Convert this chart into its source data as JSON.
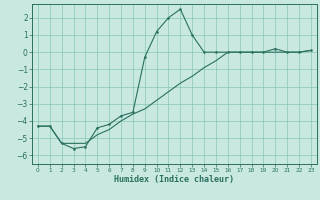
{
  "title": "",
  "xlabel": "Humidex (Indice chaleur)",
  "ylabel": "",
  "bg_color": "#c8e8e0",
  "grid_color": "#88c8b8",
  "line_color": "#2a7060",
  "xlim": [
    -0.5,
    23.5
  ],
  "ylim": [
    -6.5,
    2.8
  ],
  "xticks": [
    0,
    1,
    2,
    3,
    4,
    5,
    6,
    7,
    8,
    9,
    10,
    11,
    12,
    13,
    14,
    15,
    16,
    17,
    18,
    19,
    20,
    21,
    22,
    23
  ],
  "yticks": [
    -6,
    -5,
    -4,
    -3,
    -2,
    -1,
    0,
    1,
    2
  ],
  "line1_x": [
    0,
    1,
    2,
    3,
    4,
    5,
    6,
    7,
    8,
    9,
    10,
    11,
    12,
    13,
    14,
    15,
    16,
    17,
    18,
    19,
    20,
    21,
    22,
    23
  ],
  "line1_y": [
    -4.3,
    -4.3,
    -5.3,
    -5.6,
    -5.5,
    -4.4,
    -4.2,
    -3.7,
    -3.5,
    -0.3,
    1.2,
    2.0,
    2.5,
    1.0,
    0.0,
    0.0,
    0.0,
    0.0,
    0.0,
    0.0,
    0.2,
    0.0,
    0.0,
    0.1
  ],
  "line2_x": [
    0,
    1,
    2,
    3,
    4,
    5,
    6,
    7,
    8,
    9,
    10,
    11,
    12,
    13,
    14,
    15,
    16,
    17,
    18,
    19,
    20,
    21,
    22,
    23
  ],
  "line2_y": [
    -4.3,
    -4.3,
    -5.3,
    -5.3,
    -5.3,
    -4.8,
    -4.5,
    -4.0,
    -3.6,
    -3.3,
    -2.8,
    -2.3,
    -1.8,
    -1.4,
    -0.9,
    -0.5,
    0.0,
    0.0,
    0.0,
    0.0,
    0.0,
    0.0,
    0.0,
    0.1
  ]
}
